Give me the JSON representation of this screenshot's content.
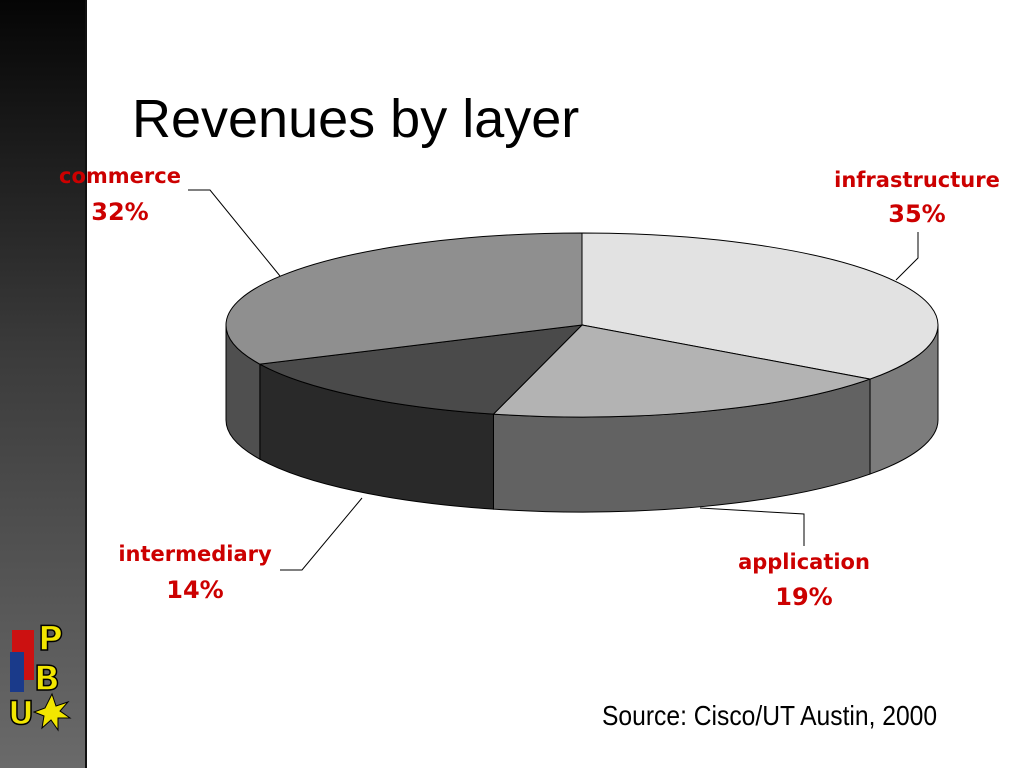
{
  "slide": {
    "title": "Revenues by layer",
    "source": "Source: Cisco/UT Austin, 2000",
    "logo_text": "UPB"
  },
  "chart_data": {
    "type": "pie",
    "style": "3d",
    "slices": [
      {
        "label": "infrastructure",
        "value": 35,
        "value_label": "35%",
        "color": "#e2e2e2"
      },
      {
        "label": "application",
        "value": 19,
        "value_label": "19%",
        "color": "#b3b3b3"
      },
      {
        "label": "intermediary",
        "value": 14,
        "value_label": "14%",
        "color": "#4a4a4a"
      },
      {
        "label": "commerce",
        "value": 32,
        "value_label": "32%",
        "color": "#8f8f8f"
      }
    ],
    "label_color": "#cc0000"
  }
}
